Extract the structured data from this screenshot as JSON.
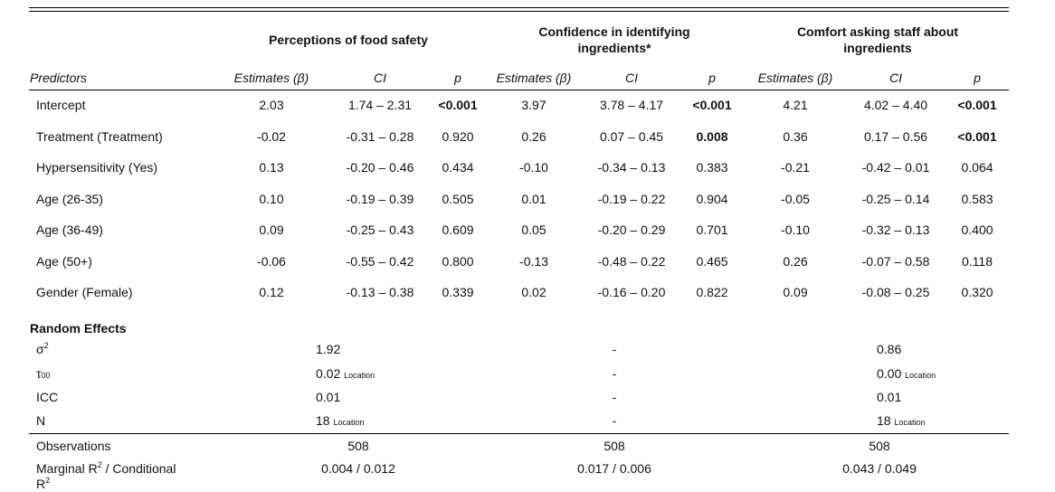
{
  "groups": [
    {
      "title": "Perceptions of food safety"
    },
    {
      "title": "Confidence in identifying ingredients*"
    },
    {
      "title": "Comfort asking staff about ingredients"
    }
  ],
  "columns": {
    "predictors": "Predictors",
    "estimates": "Estimates (β)",
    "ci": "CI",
    "p": "p"
  },
  "rows": [
    {
      "predictor": "Intercept",
      "m1": {
        "est": "2.03",
        "ci": "1.74 – 2.31",
        "p": "<0.001",
        "bold": true
      },
      "m2": {
        "est": "3.97",
        "ci": "3.78 – 4.17",
        "p": "<0.001",
        "bold": true
      },
      "m3": {
        "est": "4.21",
        "ci": "4.02 – 4.40",
        "p": "<0.001",
        "bold": true
      }
    },
    {
      "predictor": "Treatment (Treatment)",
      "m1": {
        "est": "-0.02",
        "ci": "-0.31 – 0.28",
        "p": "0.920",
        "bold": false
      },
      "m2": {
        "est": "0.26",
        "ci": "0.07 – 0.45",
        "p": "0.008",
        "bold": true
      },
      "m3": {
        "est": "0.36",
        "ci": "0.17 – 0.56",
        "p": "<0.001",
        "bold": true
      }
    },
    {
      "predictor": "Hypersensitivity (Yes)",
      "m1": {
        "est": "0.13",
        "ci": "-0.20 – 0.46",
        "p": "0.434",
        "bold": false
      },
      "m2": {
        "est": "-0.10",
        "ci": "-0.34 – 0.13",
        "p": "0.383",
        "bold": false
      },
      "m3": {
        "est": "-0.21",
        "ci": "-0.42 – 0.01",
        "p": "0.064",
        "bold": false
      }
    },
    {
      "predictor": "Age (26-35)",
      "m1": {
        "est": "0.10",
        "ci": "-0.19 – 0.39",
        "p": "0.505",
        "bold": false
      },
      "m2": {
        "est": "0.01",
        "ci": "-0.19 – 0.22",
        "p": "0.904",
        "bold": false
      },
      "m3": {
        "est": "-0.05",
        "ci": "-0.25 – 0.14",
        "p": "0.583",
        "bold": false
      }
    },
    {
      "predictor": "Age (36-49)",
      "m1": {
        "est": "0.09",
        "ci": "-0.25 – 0.43",
        "p": "0.609",
        "bold": false
      },
      "m2": {
        "est": "0.05",
        "ci": "-0.20 – 0.29",
        "p": "0.701",
        "bold": false
      },
      "m3": {
        "est": "-0.10",
        "ci": "-0.32 – 0.13",
        "p": "0.400",
        "bold": false
      }
    },
    {
      "predictor": "Age (50+)",
      "m1": {
        "est": "-0.06",
        "ci": "-0.55 – 0.42",
        "p": "0.800",
        "bold": false
      },
      "m2": {
        "est": "-0.13",
        "ci": "-0.48 – 0.22",
        "p": "0.465",
        "bold": false
      },
      "m3": {
        "est": "0.26",
        "ci": "-0.07 – 0.58",
        "p": "0.118",
        "bold": false
      }
    },
    {
      "predictor": "Gender (Female)",
      "m1": {
        "est": "0.12",
        "ci": "-0.13 – 0.38",
        "p": "0.339",
        "bold": false
      },
      "m2": {
        "est": "0.02",
        "ci": "-0.16 – 0.20",
        "p": "0.822",
        "bold": false
      },
      "m3": {
        "est": "0.09",
        "ci": "-0.08 – 0.25",
        "p": "0.320",
        "bold": false
      }
    }
  ],
  "random_effects": {
    "heading": "Random Effects",
    "sigma": {
      "label": "σ",
      "sup": "2",
      "m1": "1.92",
      "m2": "-",
      "m3": "0.86"
    },
    "tau": {
      "label": "τ",
      "sub": "00",
      "m1": "0.02",
      "m1_sub": "Location",
      "m2": "-",
      "m3": "0.00",
      "m3_sub": "Location"
    },
    "icc": {
      "label": "ICC",
      "m1": "0.01",
      "m2": "-",
      "m3": "0.01"
    },
    "n": {
      "label": "N",
      "m1": "18",
      "m1_sub": "Location",
      "m2": "-",
      "m3": "18",
      "m3_sub": "Location"
    }
  },
  "footer": {
    "observations": {
      "label": "Observations",
      "m1": "508",
      "m2": "508",
      "m3": "508"
    },
    "r2": {
      "label_line1_a": "Marginal R",
      "sup1": "2",
      "label_line1_b": " / Conditional",
      "label_line2": "R",
      "sup2": "2",
      "m1": "0.004 / 0.012",
      "m2": "0.017 / 0.006",
      "m3": "0.043 / 0.049"
    }
  }
}
